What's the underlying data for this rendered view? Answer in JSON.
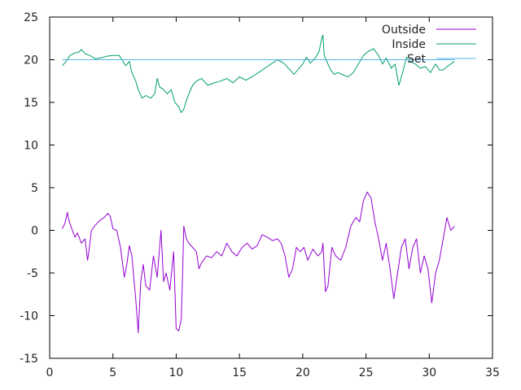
{
  "chart_data": {
    "type": "line",
    "title": "",
    "xlabel": "",
    "ylabel": "",
    "xlim": [
      0,
      35
    ],
    "ylim": [
      -15,
      25
    ],
    "xticks": [
      0,
      5,
      10,
      15,
      20,
      25,
      30,
      35
    ],
    "yticks": [
      -15,
      -10,
      -5,
      0,
      5,
      10,
      15,
      20,
      25
    ],
    "grid": false,
    "legend": "top-right",
    "series": [
      {
        "name": "Outside",
        "color": "#9400d3",
        "x": [
          1.0,
          1.2,
          1.4,
          1.5,
          1.7,
          2.0,
          2.2,
          2.5,
          2.8,
          3.0,
          3.1,
          3.3,
          3.6,
          4.0,
          4.3,
          4.6,
          4.8,
          5.0,
          5.3,
          5.6,
          5.9,
          6.1,
          6.3,
          6.5,
          6.8,
          7.0,
          7.2,
          7.4,
          7.6,
          7.9,
          8.2,
          8.5,
          8.8,
          9.0,
          9.2,
          9.5,
          9.8,
          10.0,
          10.2,
          10.4,
          10.5,
          10.6,
          10.8,
          11.0,
          11.3,
          11.6,
          11.8,
          12.0,
          12.4,
          12.8,
          13.2,
          13.6,
          14.0,
          14.4,
          14.8,
          15.2,
          15.6,
          16.0,
          16.4,
          16.8,
          17.2,
          17.6,
          18.0,
          18.3,
          18.6,
          18.9,
          19.2,
          19.5,
          19.8,
          20.1,
          20.4,
          20.8,
          21.2,
          21.5,
          21.6,
          21.8,
          22.0,
          22.3,
          22.6,
          23.0,
          23.4,
          23.8,
          24.2,
          24.5,
          24.8,
          25.1,
          25.4,
          25.7,
          26.0,
          26.3,
          26.6,
          26.9,
          27.2,
          27.5,
          27.8,
          28.1,
          28.4,
          28.7,
          29.0,
          29.3,
          29.6,
          29.9,
          30.2,
          30.5,
          30.8,
          31.1,
          31.4,
          31.7,
          32.0
        ],
        "y": [
          0.2,
          0.8,
          2.1,
          1.3,
          0.4,
          -0.8,
          -0.3,
          -1.5,
          -1.0,
          -3.5,
          -2.5,
          0.0,
          0.6,
          1.2,
          1.5,
          2.0,
          1.6,
          0.2,
          0.0,
          -2.0,
          -5.5,
          -4.0,
          -1.8,
          -3.0,
          -8.0,
          -12.0,
          -6.0,
          -4.0,
          -6.5,
          -7.0,
          -3.0,
          -5.5,
          0.0,
          -6.0,
          -5.0,
          -7.0,
          -2.5,
          -11.5,
          -11.8,
          -10.5,
          -5.5,
          0.5,
          -1.0,
          -1.5,
          -2.0,
          -2.5,
          -4.5,
          -3.8,
          -3.0,
          -3.2,
          -2.5,
          -3.0,
          -1.5,
          -2.5,
          -3.0,
          -2.0,
          -1.5,
          -2.2,
          -1.8,
          -0.5,
          -0.8,
          -1.2,
          -1.0,
          -1.5,
          -3.0,
          -5.5,
          -4.5,
          -2.0,
          -2.5,
          -2.0,
          -3.5,
          -2.2,
          -3.0,
          -2.5,
          -1.5,
          -7.2,
          -6.5,
          -2.0,
          -3.0,
          -3.5,
          -2.0,
          0.5,
          1.5,
          1.0,
          3.5,
          4.5,
          3.8,
          1.0,
          -1.0,
          -3.5,
          -1.5,
          -4.5,
          -8.0,
          -5.0,
          -2.0,
          -1.0,
          -4.5,
          -2.0,
          -1.0,
          -5.0,
          -3.0,
          -4.5,
          -8.5,
          -5.0,
          -3.5,
          -1.0,
          1.5,
          0.0,
          0.5
        ]
      },
      {
        "name": "Inside",
        "color": "#009e73",
        "x": [
          1.0,
          1.3,
          1.6,
          2.0,
          2.3,
          2.5,
          2.8,
          3.2,
          3.6,
          4.0,
          4.5,
          5.0,
          5.5,
          5.8,
          6.0,
          6.3,
          6.5,
          6.8,
          7.0,
          7.3,
          7.6,
          8.0,
          8.3,
          8.5,
          8.7,
          9.0,
          9.3,
          9.6,
          9.9,
          10.2,
          10.4,
          10.6,
          10.8,
          11.0,
          11.3,
          11.6,
          12.0,
          12.5,
          13.0,
          13.5,
          14.0,
          14.5,
          15.0,
          15.5,
          16.0,
          16.5,
          17.0,
          17.5,
          18.0,
          18.5,
          19.0,
          19.3,
          19.6,
          20.0,
          20.3,
          20.6,
          21.0,
          21.3,
          21.5,
          21.6,
          21.7,
          21.9,
          22.2,
          22.5,
          22.8,
          23.2,
          23.6,
          24.0,
          24.4,
          24.8,
          25.2,
          25.6,
          26.0,
          26.3,
          26.6,
          27.0,
          27.3,
          27.6,
          27.9,
          28.2,
          28.5,
          28.9,
          29.3,
          29.7,
          30.1,
          30.5,
          30.8,
          31.1,
          31.5,
          32.0
        ],
        "y": [
          19.3,
          19.8,
          20.5,
          20.8,
          20.9,
          21.2,
          20.7,
          20.5,
          20.1,
          20.2,
          20.4,
          20.5,
          20.5,
          19.8,
          19.3,
          19.8,
          18.5,
          17.5,
          16.5,
          15.5,
          15.8,
          15.5,
          16.0,
          17.8,
          16.8,
          16.5,
          16.0,
          16.5,
          15.0,
          14.5,
          13.8,
          14.2,
          15.2,
          16.0,
          17.0,
          17.5,
          17.8,
          17.0,
          17.3,
          17.5,
          17.8,
          17.3,
          18.0,
          17.6,
          18.0,
          18.5,
          19.0,
          19.5,
          20.0,
          19.6,
          18.8,
          18.3,
          18.8,
          19.5,
          20.3,
          19.6,
          20.2,
          21.0,
          22.5,
          22.9,
          20.5,
          19.8,
          18.8,
          18.3,
          18.5,
          18.2,
          18.0,
          18.5,
          19.5,
          20.5,
          21.0,
          21.3,
          20.5,
          19.5,
          20.2,
          19.0,
          19.5,
          17.0,
          18.5,
          20.3,
          19.8,
          19.5,
          19.0,
          19.2,
          18.5,
          19.5,
          18.8,
          18.8,
          19.3,
          19.8
        ]
      },
      {
        "name": "Set",
        "color": "#56b4e9",
        "x": [
          1.0,
          32.0
        ],
        "y": [
          20.0,
          20.0
        ]
      }
    ]
  }
}
